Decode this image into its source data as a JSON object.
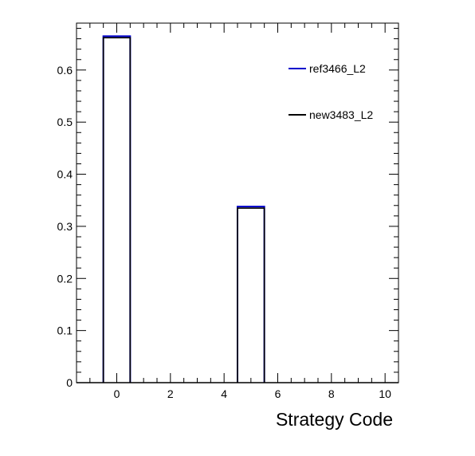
{
  "chart_data": {
    "type": "bar",
    "histogram": true,
    "xlabel": "Strategy Code",
    "ylabel": "",
    "xlim": [
      -1.5,
      10.5
    ],
    "ylim": [
      0,
      0.69
    ],
    "x_ticks": [
      0,
      2,
      4,
      6,
      8,
      10
    ],
    "y_ticks": [
      0,
      0.1,
      0.2,
      0.3,
      0.4,
      0.5,
      0.6
    ],
    "y_tick_labels": [
      "0",
      "0.1",
      "0.2",
      "0.3",
      "0.4",
      "0.5",
      "0.6"
    ],
    "x_tick_labels": [
      "0",
      "2",
      "4",
      "6",
      "8",
      "10"
    ],
    "bin_width": 1,
    "grid": false,
    "legend_position": "top-right",
    "series": [
      {
        "name": "ref3466_L2",
        "color": "#0000cc",
        "bins": [
          {
            "x": 0,
            "value": 0.665
          },
          {
            "x": 5,
            "value": 0.338
          }
        ]
      },
      {
        "name": "new3483_L2",
        "color": "#000000",
        "bins": [
          {
            "x": 0,
            "value": 0.662
          },
          {
            "x": 5,
            "value": 0.335
          }
        ]
      }
    ]
  }
}
